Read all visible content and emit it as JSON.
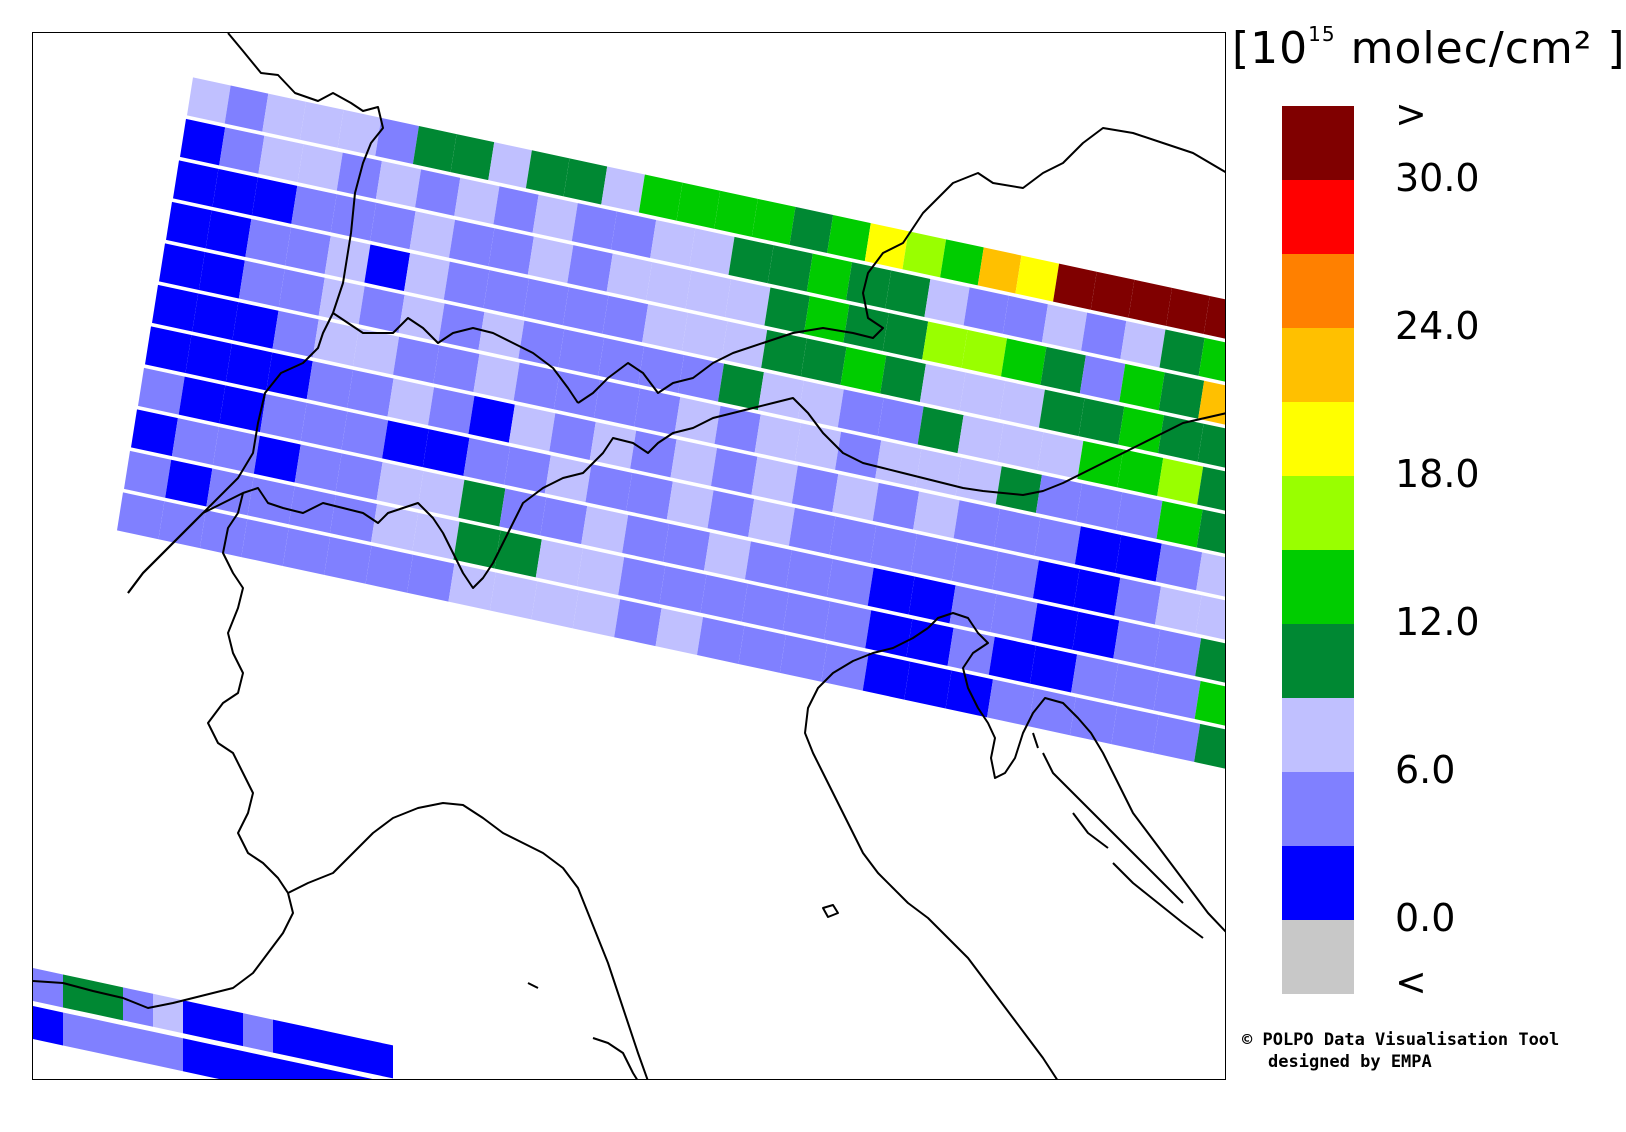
{
  "legend": {
    "units_prefix": "[10",
    "units_exponent": "15",
    "units_suffix": " molec/cm² ]",
    "colors": [
      "#800000",
      "#ff0000",
      "#ff8000",
      "#ffc000",
      "#ffff00",
      "#99ff00",
      "#00cc00",
      "#008833",
      "#c0c0ff",
      "#8080ff",
      "#0000ff",
      "#c8c8c8"
    ],
    "ticks": [
      ">",
      "30.0",
      "24.0",
      "18.0",
      "12.0",
      "6.0",
      "0.0",
      "<"
    ]
  },
  "credit": {
    "line1": "© POLPO Data Visualisation Tool",
    "line2": "designed by EMPA"
  }
}
